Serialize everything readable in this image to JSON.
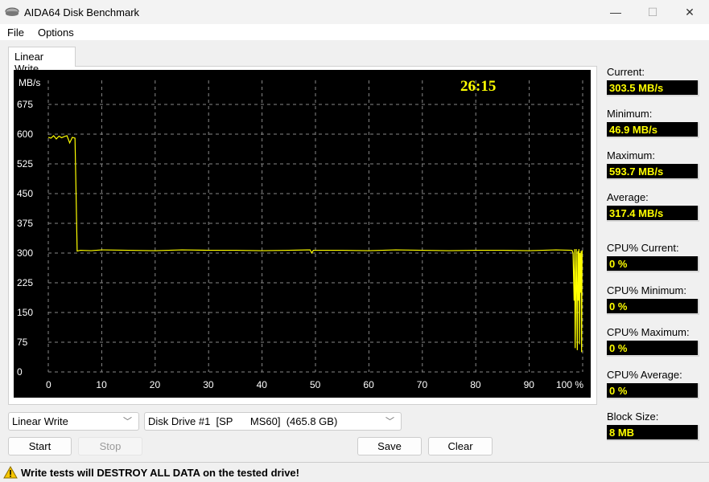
{
  "window": {
    "title": "AIDA64 Disk Benchmark",
    "minimize": "—",
    "maximize": "☐",
    "close": "✕",
    "app_icon": "disk-drive-icon"
  },
  "menu": [
    "File",
    "Options"
  ],
  "tab": "Linear Write",
  "chart_data": {
    "type": "line",
    "ylabel": "MB/s",
    "elapsed": "26:15",
    "ylim": [
      0,
      675
    ],
    "xlim": [
      0,
      100
    ],
    "yticks": [
      "0",
      "75",
      "150",
      "225",
      "300",
      "375",
      "450",
      "525",
      "600",
      "675"
    ],
    "xticks": [
      "0",
      "10",
      "20",
      "30",
      "40",
      "50",
      "60",
      "70",
      "80",
      "90",
      "100 %"
    ],
    "grid": true,
    "line_color": "#ffff00",
    "background": "#000000",
    "x": [
      0,
      0.5,
      1,
      1.5,
      2,
      2.5,
      3,
      3.5,
      4,
      4.5,
      5,
      5.2,
      5.4,
      6,
      8,
      10,
      15,
      20,
      25,
      30,
      35,
      40,
      45,
      49,
      49.3,
      49.6,
      55,
      60,
      65,
      70,
      75,
      80,
      85,
      90,
      95,
      98,
      98.2,
      98.4,
      98.5,
      98.6,
      98.8,
      98.9,
      99,
      99.1,
      99.2,
      99.3,
      99.4,
      99.5,
      99.6,
      99.7,
      99.8,
      99.9,
      100
    ],
    "values": [
      592,
      590,
      596,
      588,
      595,
      591,
      594,
      596,
      578,
      592,
      590,
      450,
      305,
      307,
      306,
      308,
      307,
      306,
      308,
      307,
      307,
      306,
      307,
      308,
      300,
      307,
      307,
      306,
      308,
      307,
      306,
      307,
      307,
      306,
      308,
      307,
      300,
      180,
      310,
      60,
      310,
      200,
      55,
      305,
      180,
      310,
      70,
      300,
      200,
      305,
      50,
      305,
      303.5
    ]
  },
  "stats": [
    {
      "label": "Current:",
      "value": "303.5 MB/s"
    },
    {
      "label": "Minimum:",
      "value": "46.9 MB/s"
    },
    {
      "label": "Maximum:",
      "value": "593.7 MB/s"
    },
    {
      "label": "Average:",
      "value": "317.4 MB/s"
    },
    {
      "label": "CPU% Current:",
      "value": "0 %"
    },
    {
      "label": "CPU% Minimum:",
      "value": "0 %"
    },
    {
      "label": "CPU% Maximum:",
      "value": "0 %"
    },
    {
      "label": "CPU% Average:",
      "value": "0 %"
    },
    {
      "label": "Block Size:",
      "value": "8 MB"
    }
  ],
  "controls": {
    "test_select": "Linear Write",
    "drive_select": "Disk Drive #1  [SP      MS60]  (465.8 GB)",
    "start": "Start",
    "stop": "Stop",
    "save": "Save",
    "clear": "Clear"
  },
  "status": {
    "icon": "warning-icon",
    "message": "Write tests will DESTROY ALL DATA on the tested drive!"
  }
}
